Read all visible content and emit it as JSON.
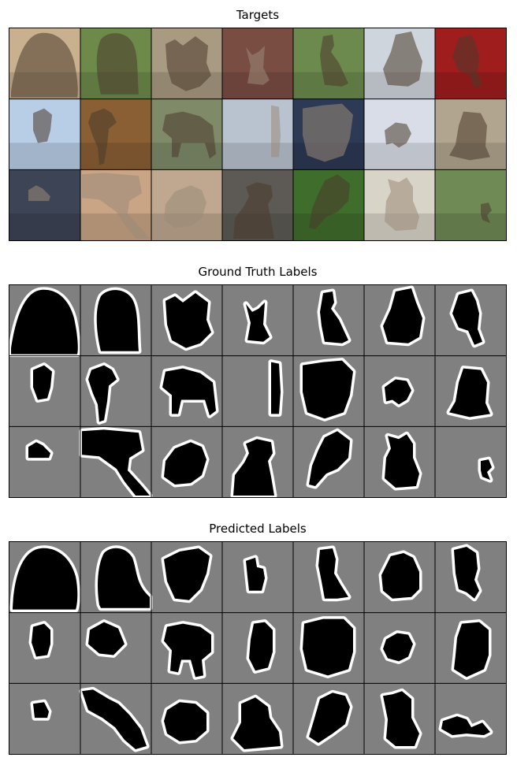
{
  "figure": {
    "panels": [
      {
        "key": "targets",
        "title": "Targets",
        "kind": "photos"
      },
      {
        "key": "truth",
        "title": "Ground Truth Labels",
        "kind": "masks"
      },
      {
        "key": "pred",
        "title": "Predicted Labels",
        "kind": "masks"
      }
    ],
    "grid": {
      "rows": 3,
      "cols": 7
    },
    "colors": {
      "mask_background": "#808080",
      "mask_foreground": "#000000",
      "mask_boundary": "#ffffff",
      "cell_border": "#000000"
    },
    "targets_photo_subjects": [
      "dog",
      "dog",
      "dog",
      "cat",
      "dog",
      "dog",
      "dog",
      "dog",
      "dog",
      "dog",
      "cat",
      "cat",
      "dog",
      "dog",
      "cat",
      "cat",
      "cat",
      "dog",
      "dog",
      "cat",
      "dog"
    ],
    "targets_tones": [
      "#c9b08f",
      "#6e8a4b",
      "#a99a82",
      "#7a4d43",
      "#6d8a4e",
      "#cfd5dc",
      "#a01d1d",
      "#b8cde6",
      "#8a5f34",
      "#7f8a68",
      "#b9c3cf",
      "#2d3a55",
      "#d8dde8",
      "#b2a58f",
      "#3d4456",
      "#c9a485",
      "#bfa88f",
      "#5d5a55",
      "#3f6d2c",
      "#d9d4c8",
      "#6f8a55"
    ]
  }
}
